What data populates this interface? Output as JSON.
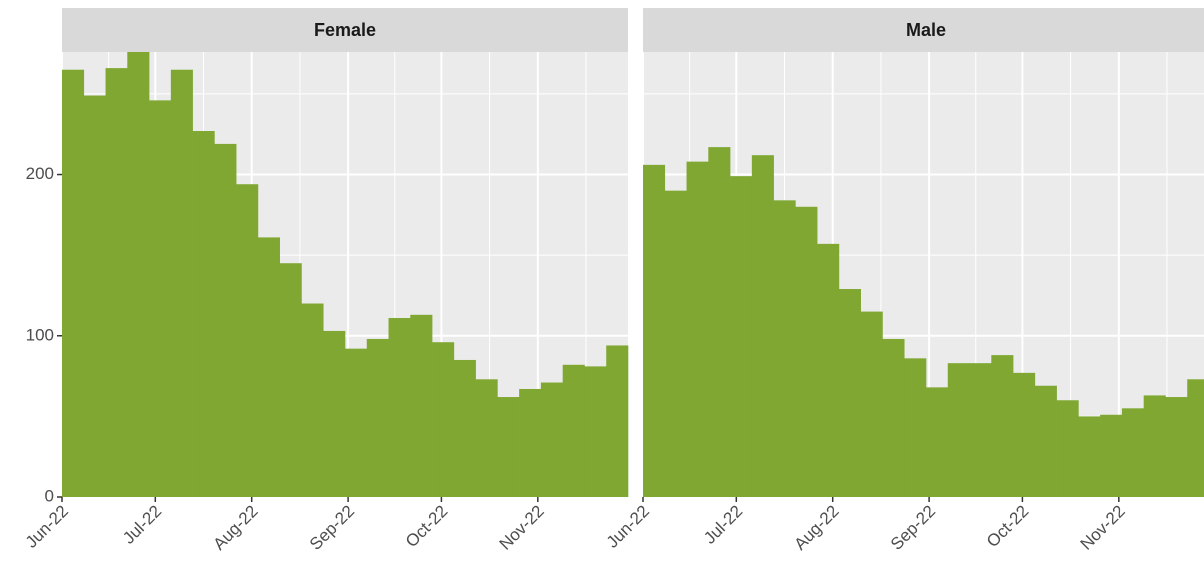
{
  "chart_data": [
    {
      "type": "histogram",
      "title": "Female",
      "color": "#7fa732",
      "bins": [
        0,
        7,
        14,
        21,
        28,
        35,
        42,
        49,
        56,
        63,
        70,
        77,
        84,
        91,
        98,
        105,
        112,
        119,
        126,
        133,
        140,
        147,
        154,
        161,
        168,
        175,
        182
      ],
      "values": [
        265,
        249,
        266,
        276,
        246,
        265,
        227,
        219,
        194,
        161,
        145,
        120,
        103,
        92,
        98,
        111,
        113,
        96,
        85,
        73,
        62,
        67,
        71,
        82,
        81,
        94
      ],
      "xlim": [
        0,
        182
      ],
      "xticks": [
        {
          "value": 0,
          "label": "Jun-22"
        },
        {
          "value": 30,
          "label": "Jul-22"
        },
        {
          "value": 61,
          "label": "Aug-22"
        },
        {
          "value": 92,
          "label": "Sep-22"
        },
        {
          "value": 122,
          "label": "Oct-22"
        },
        {
          "value": 153,
          "label": "Nov-22"
        }
      ],
      "ylim": [
        0,
        276
      ],
      "yticks": [
        0,
        100,
        200
      ],
      "grid": true
    },
    {
      "type": "histogram",
      "title": "Male",
      "color": "#7fa732",
      "bins": [
        0,
        7,
        14,
        21,
        28,
        35,
        42,
        49,
        56,
        63,
        70,
        77,
        84,
        91,
        98,
        105,
        112,
        119,
        126,
        133,
        140,
        147,
        154,
        161,
        168,
        175,
        182
      ],
      "values": [
        206,
        190,
        208,
        217,
        199,
        212,
        184,
        180,
        157,
        129,
        115,
        98,
        86,
        68,
        83,
        83,
        88,
        77,
        69,
        60,
        50,
        51,
        55,
        63,
        62,
        73
      ],
      "xlim": [
        0,
        182
      ],
      "xticks": [
        {
          "value": 0,
          "label": "Jun-22"
        },
        {
          "value": 30,
          "label": "Jul-22"
        },
        {
          "value": 61,
          "label": "Aug-22"
        },
        {
          "value": 92,
          "label": "Sep-22"
        },
        {
          "value": 122,
          "label": "Oct-22"
        },
        {
          "value": 153,
          "label": "Nov-22"
        }
      ],
      "ylim": [
        0,
        276
      ],
      "yticks": [
        0,
        100,
        200
      ],
      "grid": true
    }
  ]
}
